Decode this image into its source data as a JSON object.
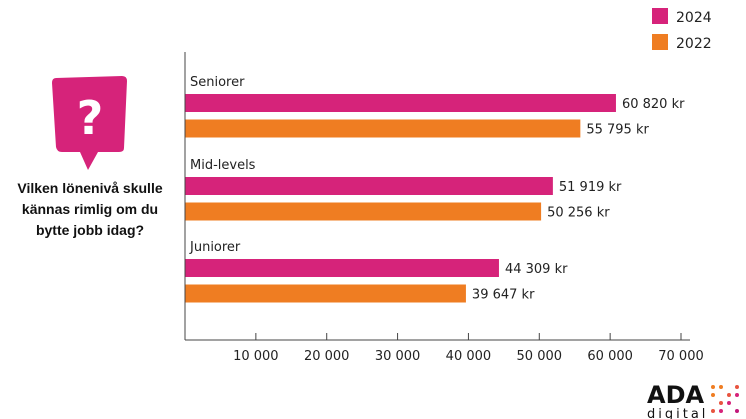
{
  "question": "Vilken lönenivå skulle kännas rimlig om du bytte jobb idag?",
  "logo": {
    "name": "ADA",
    "sub": "digital"
  },
  "colors": {
    "2024": "#d6237a",
    "2022": "#ef7d22"
  },
  "chart_data": {
    "type": "bar",
    "orientation": "horizontal",
    "categories": [
      "Seniorer",
      "Mid-levels",
      "Juniorer"
    ],
    "series": [
      {
        "name": "2024",
        "values": [
          60820,
          51919,
          44309
        ],
        "labels": [
          "60 820 kr",
          "51 919 kr",
          "44 309 kr"
        ]
      },
      {
        "name": "2022",
        "values": [
          55795,
          50256,
          39647
        ],
        "labels": [
          "55 795 kr",
          "50 256 kr",
          "39 647 kr"
        ]
      }
    ],
    "xlim": [
      0,
      70000
    ],
    "xticks": [
      10000,
      20000,
      30000,
      40000,
      50000,
      60000,
      70000
    ],
    "xtick_labels": [
      "10 000",
      "20 000",
      "30 000",
      "40 000",
      "50 000",
      "60 000",
      "70 000"
    ],
    "legend": "top-right",
    "grid": false
  }
}
